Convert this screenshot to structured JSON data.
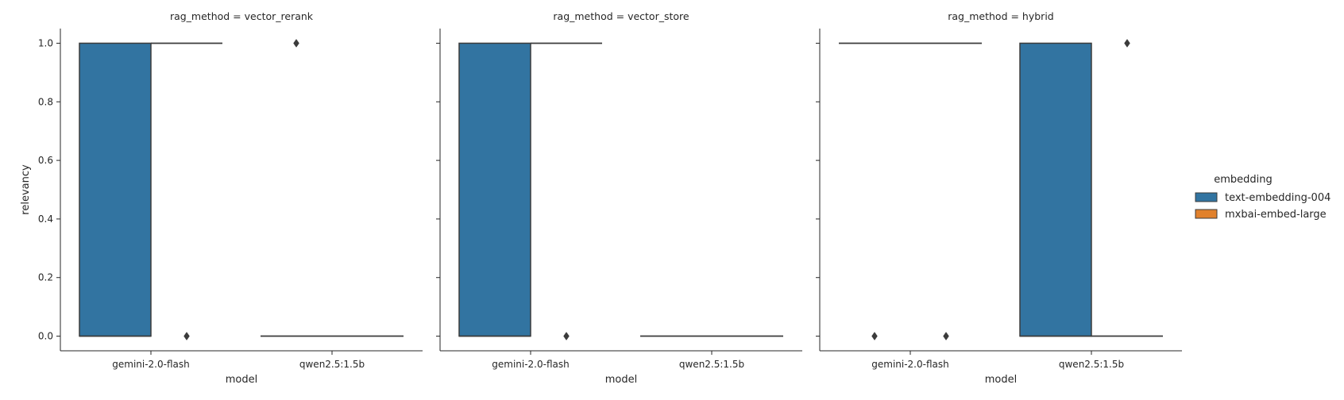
{
  "chart_data": {
    "type": "box",
    "facet_variable": "rag_method",
    "x_variable": "model",
    "y_variable": "relevancy",
    "xlabel": "model",
    "ylabel": "relevancy",
    "ylim": [
      -0.05,
      1.05
    ],
    "yticks": [
      "0.0",
      "0.2",
      "0.4",
      "0.6",
      "0.8",
      "1.0"
    ],
    "categories": [
      "gemini-2.0-flash",
      "qwen2.5:1.5b"
    ],
    "legend": {
      "title": "embedding",
      "position": "right",
      "items": [
        {
          "name": "text-embedding-004",
          "color": "#3274a1"
        },
        {
          "name": "mxbai-embed-large",
          "color": "#e1812c"
        }
      ]
    },
    "facets": [
      {
        "title": "rag_method = vector_rerank",
        "boxes": [
          {
            "model": "gemini-2.0-flash",
            "embedding": "text-embedding-004",
            "q1": 0,
            "median": 0,
            "q3": 1,
            "whisker_low": 0,
            "whisker_high": 1,
            "outliers": []
          },
          {
            "model": "gemini-2.0-flash",
            "embedding": "mxbai-embed-large",
            "q1": 1,
            "median": 1,
            "q3": 1,
            "whisker_low": 1,
            "whisker_high": 1,
            "outliers": [
              0
            ]
          },
          {
            "model": "qwen2.5:1.5b",
            "embedding": "text-embedding-004",
            "q1": 0,
            "median": 0,
            "q3": 0,
            "whisker_low": 0,
            "whisker_high": 0,
            "outliers": [
              1
            ]
          },
          {
            "model": "qwen2.5:1.5b",
            "embedding": "mxbai-embed-large",
            "q1": 0,
            "median": 0,
            "q3": 0,
            "whisker_low": 0,
            "whisker_high": 0,
            "outliers": []
          }
        ]
      },
      {
        "title": "rag_method = vector_store",
        "boxes": [
          {
            "model": "gemini-2.0-flash",
            "embedding": "text-embedding-004",
            "q1": 0,
            "median": 0,
            "q3": 1,
            "whisker_low": 0,
            "whisker_high": 1,
            "outliers": []
          },
          {
            "model": "gemini-2.0-flash",
            "embedding": "mxbai-embed-large",
            "q1": 1,
            "median": 1,
            "q3": 1,
            "whisker_low": 1,
            "whisker_high": 1,
            "outliers": [
              0
            ]
          },
          {
            "model": "qwen2.5:1.5b",
            "embedding": "text-embedding-004",
            "q1": 0,
            "median": 0,
            "q3": 0,
            "whisker_low": 0,
            "whisker_high": 0,
            "outliers": []
          },
          {
            "model": "qwen2.5:1.5b",
            "embedding": "mxbai-embed-large",
            "q1": 0,
            "median": 0,
            "q3": 0,
            "whisker_low": 0,
            "whisker_high": 0,
            "outliers": []
          }
        ]
      },
      {
        "title": "rag_method = hybrid",
        "boxes": [
          {
            "model": "gemini-2.0-flash",
            "embedding": "text-embedding-004",
            "q1": 1,
            "median": 1,
            "q3": 1,
            "whisker_low": 1,
            "whisker_high": 1,
            "outliers": [
              0
            ]
          },
          {
            "model": "gemini-2.0-flash",
            "embedding": "mxbai-embed-large",
            "q1": 1,
            "median": 1,
            "q3": 1,
            "whisker_low": 1,
            "whisker_high": 1,
            "outliers": [
              0
            ]
          },
          {
            "model": "qwen2.5:1.5b",
            "embedding": "text-embedding-004",
            "q1": 0,
            "median": 0,
            "q3": 1,
            "whisker_low": 0,
            "whisker_high": 1,
            "outliers": []
          },
          {
            "model": "qwen2.5:1.5b",
            "embedding": "mxbai-embed-large",
            "q1": 0,
            "median": 0,
            "q3": 0,
            "whisker_low": 0,
            "whisker_high": 0,
            "outliers": [
              1
            ]
          }
        ]
      }
    ]
  }
}
